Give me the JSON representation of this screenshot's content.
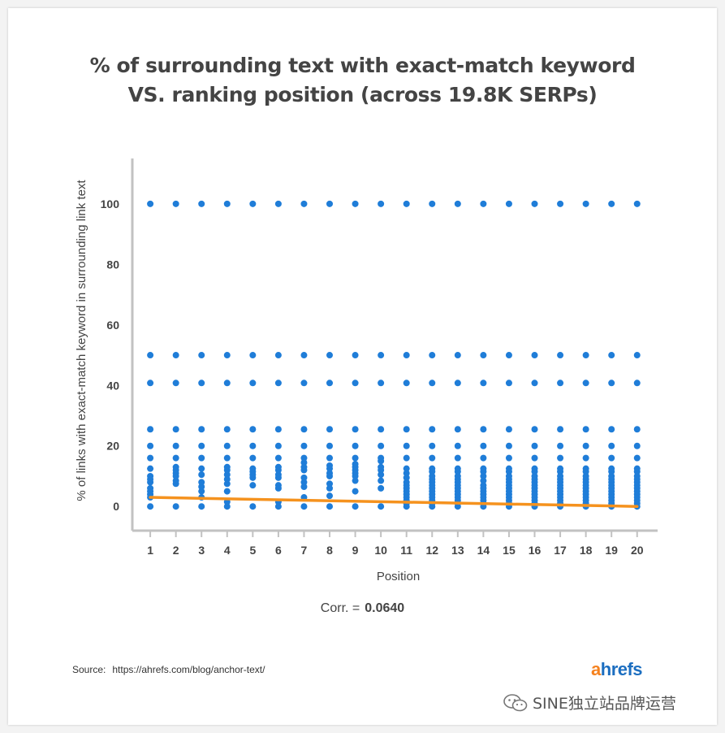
{
  "chart_data": {
    "type": "scatter",
    "title": [
      "% of surrounding text with exact-match keyword",
      "VS. ranking position (across 19.8K SERPs)"
    ],
    "xlabel": "Position",
    "ylabel": "% of links with exact-match keyword in surrounding link text",
    "categories": [
      "1",
      "2",
      "3",
      "4",
      "5",
      "6",
      "7",
      "8",
      "9",
      "10",
      "11",
      "12",
      "13",
      "14",
      "15",
      "16",
      "17",
      "18",
      "19",
      "20"
    ],
    "x_ticks": [
      1,
      2,
      3,
      4,
      5,
      6,
      7,
      8,
      9,
      10,
      11,
      12,
      13,
      14,
      15,
      16,
      17,
      18,
      19,
      20
    ],
    "y_ticks": [
      0,
      20,
      40,
      60,
      80,
      100
    ],
    "y_tick_labels": [
      "0",
      "20",
      "40",
      "60",
      "80",
      "100"
    ],
    "xlim": [
      0.3,
      20.8
    ],
    "ylim": [
      -8,
      115
    ],
    "point_color": "#1f7dd8",
    "trend_color": "#f5921e",
    "trend_line": {
      "x": [
        1,
        20
      ],
      "y": [
        3,
        0
      ]
    },
    "series": [
      {
        "name": "Position 1",
        "x": 1,
        "values": [
          0,
          3,
          4,
          5,
          6,
          8,
          9,
          10,
          12.5,
          16,
          20,
          25.5,
          40.8,
          50,
          100
        ]
      },
      {
        "name": "Position 2",
        "x": 2,
        "values": [
          0,
          7.5,
          8.5,
          10,
          11,
          12,
          13,
          16,
          20,
          25.5,
          40.8,
          50,
          100
        ]
      },
      {
        "name": "Position 3",
        "x": 3,
        "values": [
          0,
          3,
          5,
          6.5,
          8,
          10.5,
          12.5,
          16,
          20,
          25.5,
          40.8,
          50,
          100
        ]
      },
      {
        "name": "Position 4",
        "x": 4,
        "values": [
          0,
          1.5,
          5,
          7.5,
          9,
          10.5,
          12,
          13,
          16,
          20,
          25.5,
          40.8,
          50,
          100
        ]
      },
      {
        "name": "Position 5",
        "x": 5,
        "values": [
          0,
          7,
          9.5,
          10.5,
          11.5,
          12.5,
          16,
          20,
          25.5,
          40.8,
          50,
          100
        ]
      },
      {
        "name": "Position 6",
        "x": 6,
        "values": [
          0,
          1.5,
          6,
          7,
          9.5,
          10.5,
          12,
          13,
          16,
          20,
          25.5,
          40.8,
          50,
          100
        ]
      },
      {
        "name": "Position 7",
        "x": 7,
        "values": [
          0,
          3,
          6.5,
          8,
          9.5,
          12,
          13,
          14.5,
          16,
          20,
          25.5,
          40.8,
          50,
          100
        ]
      },
      {
        "name": "Position 8",
        "x": 8,
        "values": [
          0,
          3.5,
          6,
          7.5,
          10,
          11,
          12.5,
          13.5,
          16,
          20,
          25.5,
          40.8,
          50,
          100
        ]
      },
      {
        "name": "Position 9",
        "x": 9,
        "values": [
          0,
          5,
          8.5,
          10,
          11,
          12,
          13,
          14,
          16,
          20,
          25.5,
          40.8,
          50,
          100
        ]
      },
      {
        "name": "Position 10",
        "x": 10,
        "values": [
          0,
          6,
          8.5,
          10.5,
          12,
          13,
          15,
          16,
          20,
          25.5,
          40.8,
          50,
          100
        ]
      },
      {
        "name": "Position 11",
        "x": 11,
        "values": [
          0,
          1,
          2,
          3,
          4,
          5,
          6,
          7,
          8,
          9.5,
          11,
          12.5,
          16,
          20,
          25.5,
          40.8,
          50,
          100
        ]
      },
      {
        "name": "Position 12",
        "x": 12,
        "values": [
          0,
          1,
          2,
          3,
          4,
          5,
          6,
          7,
          8,
          9,
          10,
          11.5,
          12.5,
          16,
          20,
          25.5,
          40.8,
          50,
          100
        ]
      },
      {
        "name": "Position 13",
        "x": 13,
        "values": [
          0,
          1,
          2,
          3,
          4,
          5,
          6,
          7,
          8,
          9,
          10,
          11.5,
          12.5,
          16,
          20,
          25.5,
          40.8,
          50,
          100
        ]
      },
      {
        "name": "Position 14",
        "x": 14,
        "values": [
          0,
          1,
          2,
          3,
          4,
          5,
          6,
          7,
          8.5,
          10,
          11.5,
          12.5,
          16,
          20,
          25.5,
          40.8,
          50,
          100
        ]
      },
      {
        "name": "Position 15",
        "x": 15,
        "values": [
          0,
          1,
          2,
          3,
          4,
          5,
          6,
          7,
          8,
          9,
          10,
          11.5,
          12.5,
          16,
          20,
          25.5,
          40.8,
          50,
          100
        ]
      },
      {
        "name": "Position 16",
        "x": 16,
        "values": [
          0,
          1,
          2,
          3,
          4,
          5,
          6,
          7,
          8,
          9,
          10,
          11.5,
          12.5,
          16,
          20,
          25.5,
          40.8,
          50,
          100
        ]
      },
      {
        "name": "Position 17",
        "x": 17,
        "values": [
          0,
          1,
          2,
          3,
          4,
          5,
          6,
          7,
          8,
          9,
          10,
          11.5,
          12.5,
          16,
          20,
          25.5,
          40.8,
          50,
          100
        ]
      },
      {
        "name": "Position 18",
        "x": 18,
        "values": [
          0,
          1,
          2,
          3,
          4,
          5,
          6,
          7,
          8,
          9,
          10,
          11.5,
          12.5,
          16,
          20,
          25.5,
          40.8,
          50,
          100
        ]
      },
      {
        "name": "Position 19",
        "x": 19,
        "values": [
          0,
          1,
          2,
          3,
          4,
          5,
          6,
          7,
          8,
          9,
          10,
          11.5,
          12.5,
          16,
          20,
          25.5,
          40.8,
          50,
          100
        ]
      },
      {
        "name": "Position 20",
        "x": 20,
        "values": [
          0,
          1,
          2,
          3,
          4,
          5,
          6,
          7,
          8,
          9,
          10,
          11.5,
          12.5,
          16,
          20,
          25.5,
          40.8,
          50,
          100
        ]
      }
    ]
  },
  "title": {
    "line1": "% of surrounding text with exact-match keyword",
    "line2": "VS. ranking position (across 19.8K SERPs)"
  },
  "correlation": {
    "label": "Corr. =",
    "value": "0.0640"
  },
  "source": {
    "label": "Source:",
    "url": "https://ahrefs.com/blog/anchor-text/"
  },
  "logo": {
    "first_letter": "a",
    "rest": "hrefs",
    "accent_color": "#f5821f",
    "brand_color": "#1c6ec0"
  },
  "watermark": {
    "icon": "wechat-icon",
    "text": "SINE独立站品牌运营"
  }
}
